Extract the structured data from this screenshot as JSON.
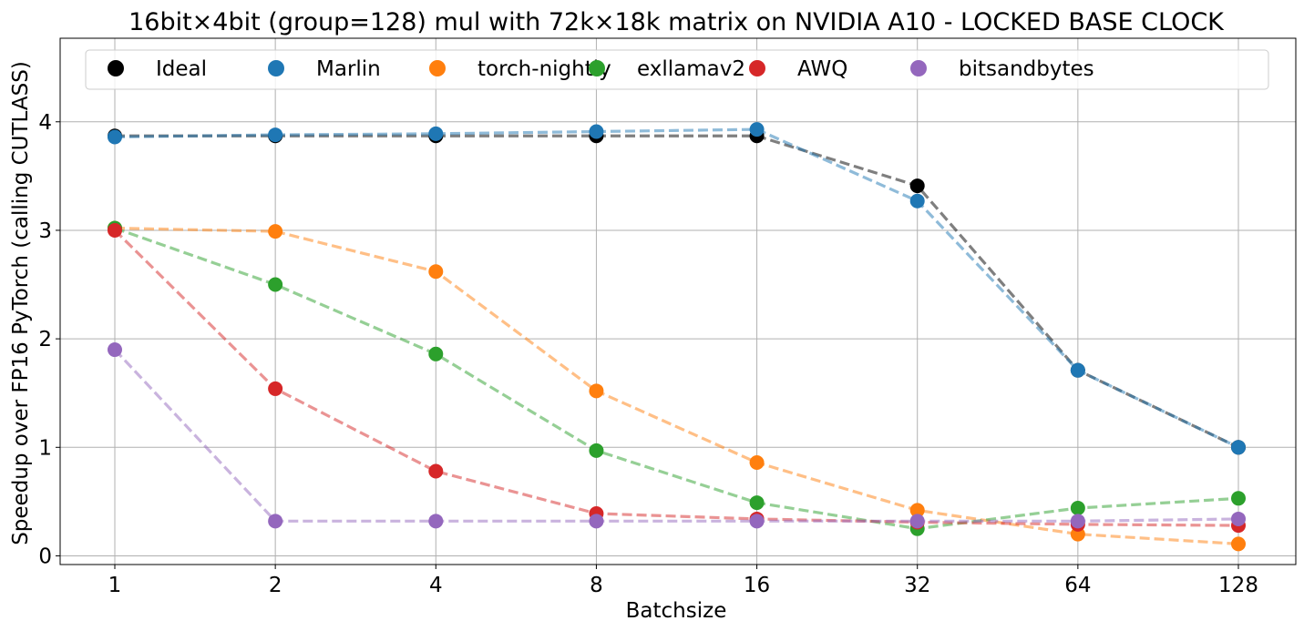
{
  "chart_data": {
    "type": "line",
    "title": "16bit×4bit (group=128) mul with 72k×18k matrix on NVIDIA A10 - LOCKED BASE CLOCK",
    "xlabel": "Batchsize",
    "ylabel": "Speedup over FP16 PyTorch (calling CUTLASS)",
    "x_scale": "log2",
    "categories": [
      "1",
      "2",
      "4",
      "8",
      "16",
      "32",
      "64",
      "128"
    ],
    "yticks": [
      "0",
      "1",
      "2",
      "3",
      "4"
    ],
    "ylim": [
      -0.08,
      4.77
    ],
    "grid": true,
    "legend_position": "top",
    "line_style": "dashed",
    "series": [
      {
        "name": "Ideal",
        "color": "#000000",
        "values": [
          3.87,
          3.87,
          3.87,
          3.87,
          3.87,
          3.41,
          1.71,
          1.0
        ]
      },
      {
        "name": "Marlin",
        "color": "#1f77b4",
        "values": [
          3.86,
          3.88,
          3.89,
          3.91,
          3.93,
          3.27,
          1.71,
          1.0
        ]
      },
      {
        "name": "torch-nightly",
        "color": "#ff7f0e",
        "values": [
          3.02,
          2.99,
          2.62,
          1.52,
          0.86,
          0.42,
          0.2,
          0.11
        ]
      },
      {
        "name": "exllamav2",
        "color": "#2ca02c",
        "values": [
          3.02,
          2.5,
          1.86,
          0.97,
          0.49,
          0.25,
          0.44,
          0.53
        ]
      },
      {
        "name": "AWQ",
        "color": "#d62728",
        "values": [
          3.0,
          1.54,
          0.78,
          0.39,
          0.34,
          0.31,
          0.29,
          0.28
        ]
      },
      {
        "name": "bitsandbytes",
        "color": "#9467bd",
        "values": [
          1.9,
          0.32,
          0.32,
          0.32,
          0.32,
          0.32,
          0.32,
          0.34
        ]
      }
    ]
  }
}
